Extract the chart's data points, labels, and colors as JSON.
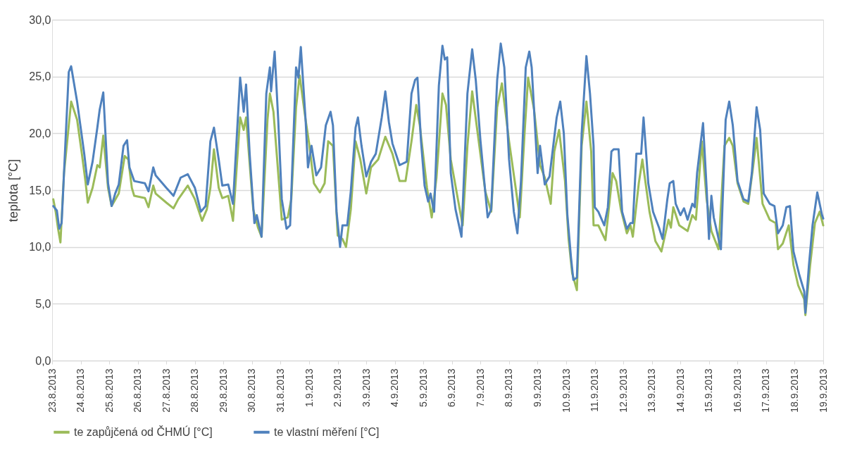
{
  "chart_data": {
    "type": "line",
    "ylabel": "teplota [°C]",
    "xlim": [
      "2013-08-23",
      "2013-09-19"
    ],
    "xticks": [
      {
        "value": "2013-08-23",
        "label": "23.8.2013"
      },
      {
        "value": "2013-08-24",
        "label": "24.8.2013"
      },
      {
        "value": "2013-08-25",
        "label": "25.8.2013"
      },
      {
        "value": "2013-08-26",
        "label": "26.8.2013"
      },
      {
        "value": "2013-08-27",
        "label": "27.8.2013"
      },
      {
        "value": "2013-08-28",
        "label": "28.8.2013"
      },
      {
        "value": "2013-08-29",
        "label": "29.8.2013"
      },
      {
        "value": "2013-08-30",
        "label": "30.8.2013"
      },
      {
        "value": "2013-08-31",
        "label": "31.8.2013"
      },
      {
        "value": "2013-09-01",
        "label": "1.9.2013"
      },
      {
        "value": "2013-09-02",
        "label": "2.9.2013"
      },
      {
        "value": "2013-09-03",
        "label": "3.9.2013"
      },
      {
        "value": "2013-09-04",
        "label": "4.9.2013"
      },
      {
        "value": "2013-09-05",
        "label": "5.9.2013"
      },
      {
        "value": "2013-09-06",
        "label": "6.9.2013"
      },
      {
        "value": "2013-09-07",
        "label": "7.9.2013"
      },
      {
        "value": "2013-09-08",
        "label": "8.9.2013"
      },
      {
        "value": "2013-09-09",
        "label": "9.9.2013"
      },
      {
        "value": "2013-09-10",
        "label": "10.9.2013"
      },
      {
        "value": "2013-09-11",
        "label": "11.9.2013"
      },
      {
        "value": "2013-09-12",
        "label": "12.9.2013"
      },
      {
        "value": "2013-09-13",
        "label": "13.9.2013"
      },
      {
        "value": "2013-09-14",
        "label": "14.9.2013"
      },
      {
        "value": "2013-09-15",
        "label": "15.9.2013"
      },
      {
        "value": "2013-09-16",
        "label": "16.9.2013"
      },
      {
        "value": "2013-09-17",
        "label": "17.9.2013"
      },
      {
        "value": "2013-09-18",
        "label": "18.9.2013"
      },
      {
        "value": "2013-09-19",
        "label": "19.9.2013"
      }
    ],
    "ylim": [
      0,
      30
    ],
    "yticks": [
      {
        "value": 0,
        "label": "0,0"
      },
      {
        "value": 5,
        "label": "5,0"
      },
      {
        "value": 10,
        "label": "10,0"
      },
      {
        "value": 15,
        "label": "15,0"
      },
      {
        "value": 20,
        "label": "20,0"
      },
      {
        "value": 25,
        "label": "25,0"
      },
      {
        "value": 30,
        "label": "30,0"
      }
    ],
    "grid": "y",
    "legend": "bottom",
    "line_style": "solid",
    "marker": "none",
    "series": [
      {
        "name": "te zapůjčená od ČHMÚ [°C]",
        "color": "#9bbb59",
        "x": [
          "2013-08-23T01:00",
          "2013-08-23T03:00",
          "2013-08-23T05:00",
          "2013-08-23T07:00",
          "2013-08-23T10:00",
          "2013-08-23T16:00",
          "2013-08-23T21:00",
          "2013-08-24T01:00",
          "2013-08-24T04:00",
          "2013-08-24T06:00",
          "2013-08-24T10:00",
          "2013-08-24T14:00",
          "2013-08-24T16:00",
          "2013-08-24T19:00",
          "2013-08-24T23:00",
          "2013-08-25T02:00",
          "2013-08-25T08:00",
          "2013-08-25T13:00",
          "2013-08-25T16:00",
          "2013-08-25T19:00",
          "2013-08-25T21:00",
          "2013-08-26T06:00",
          "2013-08-26T09:00",
          "2013-08-26T13:00",
          "2013-08-26T15:00",
          "2013-08-27T00:00",
          "2013-08-27T06:00",
          "2013-08-27T10:00",
          "2013-08-27T18:00",
          "2013-08-28T00:00",
          "2013-08-28T06:00",
          "2013-08-28T10:00",
          "2013-08-28T13:00",
          "2013-08-28T16:00",
          "2013-08-28T20:00",
          "2013-08-28T23:00",
          "2013-08-29T04:00",
          "2013-08-29T08:00",
          "2013-08-29T14:00",
          "2013-08-29T17:00",
          "2013-08-29T19:00",
          "2013-08-30T01:00",
          "2013-08-30T05:00",
          "2013-08-30T08:00",
          "2013-08-30T13:00",
          "2013-08-30T15:00",
          "2013-08-30T18:00",
          "2013-08-30T22:00",
          "2013-08-31T01:00",
          "2013-08-31T06:00",
          "2013-08-31T09:00",
          "2013-08-31T13:00",
          "2013-08-31T16:00",
          "2013-08-31T21:00",
          "2013-09-01T00:00",
          "2013-09-01T04:00",
          "2013-09-01T09:00",
          "2013-09-01T13:00",
          "2013-09-01T16:00",
          "2013-09-01T20:00",
          "2013-09-02T00:00",
          "2013-09-02T04:00",
          "2013-09-02T07:00",
          "2013-09-02T11:00",
          "2013-09-02T15:00",
          "2013-09-02T19:00",
          "2013-09-03T00:00",
          "2013-09-03T04:00",
          "2013-09-03T10:00",
          "2013-09-03T16:00",
          "2013-09-03T22:00",
          "2013-09-04T04:00",
          "2013-09-04T09:00",
          "2013-09-04T14:00",
          "2013-09-04T18:00",
          "2013-09-04T21:00",
          "2013-09-05T03:00",
          "2013-09-05T07:00",
          "2013-09-05T11:00",
          "2013-09-05T16:00",
          "2013-09-05T19:00",
          "2013-09-05T23:00",
          "2013-09-06T05:00",
          "2013-09-06T09:00",
          "2013-09-06T13:00",
          "2013-09-06T17:00",
          "2013-09-06T21:00",
          "2013-09-07T04:00",
          "2013-09-07T09:00",
          "2013-09-07T14:00",
          "2013-09-07T18:00",
          "2013-09-08T00:00",
          "2013-09-08T05:00",
          "2013-09-08T09:00",
          "2013-09-08T13:00",
          "2013-09-08T16:00",
          "2013-09-08T21:00",
          "2013-09-09T02:00",
          "2013-09-09T06:00",
          "2013-09-09T11:00",
          "2013-09-09T14:00",
          "2013-09-09T18:00",
          "2013-09-09T23:00",
          "2013-09-10T02:00",
          "2013-09-10T05:00",
          "2013-09-10T09:00",
          "2013-09-10T13:00",
          "2013-09-10T17:00",
          "2013-09-10T21:00",
          "2013-09-10T23:00",
          "2013-09-11T03:00",
          "2013-09-11T09:00",
          "2013-09-11T15:00",
          "2013-09-11T18:00",
          "2013-09-11T22:00",
          "2013-09-12T03:00",
          "2013-09-12T06:00",
          "2013-09-12T08:00",
          "2013-09-12T13:00",
          "2013-09-12T16:00",
          "2013-09-12T22:00",
          "2013-09-13T03:00",
          "2013-09-13T08:00",
          "2013-09-13T14:00",
          "2013-09-13T16:00",
          "2013-09-13T18:00",
          "2013-09-13T23:00",
          "2013-09-14T06:00",
          "2013-09-14T10:00",
          "2013-09-14T13:00",
          "2013-09-14T18:00",
          "2013-09-14T22:00",
          "2013-09-15T02:00",
          "2013-09-15T08:00",
          "2013-09-15T13:00",
          "2013-09-15T17:00",
          "2013-09-15T20:00",
          "2013-09-16T00:00",
          "2013-09-16T05:00",
          "2013-09-16T09:00",
          "2013-09-16T13:00",
          "2013-09-16T16:00",
          "2013-09-16T21:00",
          "2013-09-17T03:00",
          "2013-09-17T08:00",
          "2013-09-17T10:00",
          "2013-09-17T14:00",
          "2013-09-17T19:00",
          "2013-09-17T23:00",
          "2013-09-18T03:00",
          "2013-09-18T08:00",
          "2013-09-18T09:00",
          "2013-09-18T13:00",
          "2013-09-18T17:00",
          "2013-09-18T21:00",
          "2013-09-19T00:00"
        ],
        "values": [
          14.2,
          13.1,
          11.6,
          10.4,
          16.5,
          22.8,
          21.2,
          18.2,
          15.8,
          13.9,
          15.2,
          17.2,
          17.0,
          19.8,
          15.2,
          13.6,
          14.7,
          18.0,
          17.7,
          15.2,
          14.5,
          14.3,
          13.5,
          15.4,
          14.7,
          13.9,
          13.4,
          14.2,
          15.4,
          14.2,
          12.3,
          13.3,
          15.2,
          18.6,
          15.2,
          14.3,
          14.5,
          12.3,
          21.4,
          20.3,
          21.4,
          13.3,
          11.7,
          10.9,
          21.2,
          23.5,
          21.9,
          16.5,
          12.4,
          12.6,
          14.2,
          22.3,
          25.1,
          21.2,
          19.1,
          15.6,
          14.8,
          15.6,
          19.3,
          18.9,
          11.0,
          10.7,
          10.0,
          13.3,
          19.3,
          17.7,
          14.7,
          17.0,
          17.7,
          19.7,
          18.2,
          15.8,
          15.8,
          19.3,
          22.5,
          20.7,
          15.2,
          12.6,
          16.1,
          23.5,
          22.5,
          17.7,
          14.2,
          11.9,
          18.9,
          23.7,
          20.5,
          14.9,
          13.1,
          22.3,
          24.4,
          19.3,
          15.6,
          12.6,
          20.0,
          24.9,
          22.1,
          17.2,
          16.1,
          13.8,
          18.4,
          20.3,
          15.8,
          10.7,
          7.7,
          6.2,
          18.9,
          22.8,
          18.4,
          11.9,
          11.9,
          10.6,
          16.5,
          15.8,
          13.3,
          11.2,
          11.9,
          10.9,
          15.6,
          17.7,
          13.1,
          10.5,
          9.6,
          12.4,
          11.7,
          13.5,
          11.9,
          11.4,
          12.8,
          12.4,
          19.3,
          14.2,
          11.4,
          9.8,
          18.9,
          19.6,
          18.9,
          15.6,
          14.0,
          13.8,
          17.0,
          19.6,
          13.8,
          12.4,
          12.1,
          9.8,
          10.3,
          11.9,
          8.4,
          6.6,
          5.4,
          4.0,
          8.4,
          12.1,
          13.1,
          11.9
        ]
      },
      {
        "name": "te vlastní měření [°C]",
        "color": "#4f81bd",
        "x": [
          "2013-08-23T01:00",
          "2013-08-23T04:00",
          "2013-08-23T06:00",
          "2013-08-23T08:00",
          "2013-08-23T14:00",
          "2013-08-23T16:00",
          "2013-08-23T21:00",
          "2013-08-24T00:00",
          "2013-08-24T03:00",
          "2013-08-24T06:00",
          "2013-08-24T10:00",
          "2013-08-24T14:00",
          "2013-08-24T16:00",
          "2013-08-24T19:00",
          "2013-08-24T23:00",
          "2013-08-25T02:00",
          "2013-08-25T05:00",
          "2013-08-25T08:00",
          "2013-08-25T12:00",
          "2013-08-25T15:00",
          "2013-08-25T17:00",
          "2013-08-25T21:00",
          "2013-08-26T06:00",
          "2013-08-26T09:00",
          "2013-08-26T13:00",
          "2013-08-26T15:00",
          "2013-08-27T00:00",
          "2013-08-27T06:00",
          "2013-08-27T12:00",
          "2013-08-27T18:00",
          "2013-08-28T00:00",
          "2013-08-28T05:00",
          "2013-08-28T09:00",
          "2013-08-28T13:00",
          "2013-08-28T16:00",
          "2013-08-28T20:00",
          "2013-08-28T23:00",
          "2013-08-29T04:00",
          "2013-08-29T08:00",
          "2013-08-29T14:00",
          "2013-08-29T17:00",
          "2013-08-29T19:00",
          "2013-08-29T22:00",
          "2013-08-30T02:00",
          "2013-08-30T04:00",
          "2013-08-30T08:00",
          "2013-08-30T12:00",
          "2013-08-30T15:00",
          "2013-08-30T16:00",
          "2013-08-30T19:00",
          "2013-08-30T22:00",
          "2013-08-31T01:00",
          "2013-08-31T05:00",
          "2013-08-31T08:00",
          "2013-08-31T13:00",
          "2013-08-31T15:00",
          "2013-08-31T17:00",
          "2013-08-31T21:00",
          "2013-08-31T23:00",
          "2013-09-01T02:00",
          "2013-09-01T06:00",
          "2013-09-01T10:00",
          "2013-09-01T14:00",
          "2013-09-01T18:00",
          "2013-09-01T20:00",
          "2013-09-01T23:00",
          "2013-09-02T02:00",
          "2013-09-02T04:00",
          "2013-09-02T08:00",
          "2013-09-02T11:00",
          "2013-09-02T15:00",
          "2013-09-02T17:00",
          "2013-09-02T20:00",
          "2013-09-03T00:00",
          "2013-09-03T04:00",
          "2013-09-03T08:00",
          "2013-09-03T13:00",
          "2013-09-03T16:00",
          "2013-09-03T19:00",
          "2013-09-03T22:00",
          "2013-09-04T04:00",
          "2013-09-04T10:00",
          "2013-09-04T14:00",
          "2013-09-04T17:00",
          "2013-09-04T19:00",
          "2013-09-04T22:00",
          "2013-09-05T01:00",
          "2013-09-05T04:00",
          "2013-09-05T06:00",
          "2013-09-05T09:00",
          "2013-09-05T13:00",
          "2013-09-05T16:00",
          "2013-09-05T18:00",
          "2013-09-05T20:00",
          "2013-09-05T23:00",
          "2013-09-06T03:00",
          "2013-09-06T08:00",
          "2013-09-06T13:00",
          "2013-09-06T17:00",
          "2013-09-06T20:00",
          "2013-09-07T00:00",
          "2013-09-07T06:00",
          "2013-09-07T09:00",
          "2013-09-07T14:00",
          "2013-09-07T17:00",
          "2013-09-07T20:00",
          "2013-09-08T00:00",
          "2013-09-08T04:00",
          "2013-09-08T07:00",
          "2013-09-08T10:00",
          "2013-09-08T14:00",
          "2013-09-08T17:00",
          "2013-09-08T19:00",
          "2013-09-09T00:00",
          "2013-09-09T02:00",
          "2013-09-09T06:00",
          "2013-09-09T10:00",
          "2013-09-09T16:00",
          "2013-09-09T19:00",
          "2013-09-09T22:00",
          "2013-09-10T01:00",
          "2013-09-10T04:00",
          "2013-09-10T06:00",
          "2013-09-10T09:00",
          "2013-09-10T13:00",
          "2013-09-10T17:00",
          "2013-09-10T20:00",
          "2013-09-10T23:00",
          "2013-09-11T00:00",
          "2013-09-11T03:00",
          "2013-09-11T08:00",
          "2013-09-11T11:00",
          "2013-09-11T14:00",
          "2013-09-11T16:00",
          "2013-09-11T20:00",
          "2013-09-11T23:00",
          "2013-09-12T03:00",
          "2013-09-12T06:00",
          "2013-09-12T08:00",
          "2013-09-12T11:00",
          "2013-09-12T15:00",
          "2013-09-12T17:00",
          "2013-09-12T21:00",
          "2013-09-13T01:00",
          "2013-09-13T06:00",
          "2013-09-13T09:00",
          "2013-09-13T13:00",
          "2013-09-13T15:00",
          "2013-09-13T18:00",
          "2013-09-13T20:00",
          "2013-09-14T00:00",
          "2013-09-14T03:00",
          "2013-09-14T06:00",
          "2013-09-14T10:00",
          "2013-09-14T12:00",
          "2013-09-14T14:00",
          "2013-09-14T19:00",
          "2013-09-14T22:00",
          "2013-09-15T00:00",
          "2013-09-15T02:00",
          "2013-09-15T04:00",
          "2013-09-15T10:00",
          "2013-09-15T14:00",
          "2013-09-15T17:00",
          "2013-09-15T20:00",
          "2013-09-16T00:00",
          "2013-09-16T05:00",
          "2013-09-16T09:00",
          "2013-09-16T12:00",
          "2013-09-16T16:00",
          "2013-09-16T19:00",
          "2013-09-16T22:00",
          "2013-09-17T03:00",
          "2013-09-17T07:00",
          "2013-09-17T10:00",
          "2013-09-17T14:00",
          "2013-09-17T17:00",
          "2013-09-17T20:00",
          "2013-09-17T23:00",
          "2013-09-18T04:00",
          "2013-09-18T08:00",
          "2013-09-18T09:00",
          "2013-09-18T12:00",
          "2013-09-18T15:00",
          "2013-09-18T19:00",
          "2013-09-18T23:00",
          "2013-09-19T00:00"
        ],
        "values": [
          13.6,
          13.2,
          11.6,
          12.1,
          25.4,
          25.9,
          22.8,
          20.5,
          18.2,
          15.5,
          17.5,
          20.5,
          22.1,
          23.6,
          15.6,
          13.6,
          14.7,
          15.5,
          18.9,
          19.4,
          17.0,
          15.8,
          15.6,
          14.9,
          17.0,
          16.3,
          15.2,
          14.5,
          16.1,
          16.4,
          15.2,
          13.1,
          13.6,
          19.3,
          20.5,
          17.7,
          15.4,
          15.5,
          13.8,
          24.9,
          21.9,
          24.3,
          18.2,
          12.1,
          12.8,
          10.9,
          23.5,
          25.8,
          23.7,
          27.2,
          21.2,
          14.2,
          11.6,
          11.9,
          25.8,
          24.9,
          27.6,
          21.2,
          17.0,
          18.9,
          16.3,
          17.0,
          20.7,
          21.9,
          20.7,
          13.1,
          10.0,
          11.9,
          11.9,
          14.9,
          20.5,
          21.4,
          18.9,
          16.2,
          17.5,
          18.2,
          21.4,
          23.7,
          21.0,
          19.1,
          17.2,
          17.5,
          23.5,
          24.7,
          24.9,
          19.3,
          15.4,
          14.0,
          14.7,
          13.1,
          24.2,
          27.7,
          26.5,
          26.7,
          16.5,
          13.3,
          10.9,
          23.5,
          27.4,
          24.7,
          19.3,
          12.6,
          13.3,
          24.7,
          27.9,
          25.8,
          17.7,
          13.1,
          11.2,
          15.8,
          25.8,
          27.2,
          25.8,
          16.5,
          18.9,
          15.5,
          16.2,
          21.4,
          22.8,
          20.0,
          12.8,
          9.1,
          7.1,
          7.3,
          20.0,
          26.8,
          23.5,
          18.9,
          13.5,
          13.1,
          11.9,
          13.5,
          18.4,
          18.6,
          18.6,
          13.1,
          11.6,
          12.1,
          12.1,
          18.2,
          18.2,
          21.4,
          15.6,
          13.1,
          11.7,
          10.7,
          14.2,
          15.6,
          15.8,
          13.8,
          12.8,
          13.4,
          12.4,
          13.8,
          13.5,
          16.5,
          20.9,
          15.2,
          10.7,
          14.5,
          12.6,
          9.8,
          21.2,
          22.8,
          20.7,
          15.8,
          14.2,
          14.0,
          16.5,
          22.3,
          20.3,
          14.7,
          13.8,
          13.6,
          11.2,
          11.9,
          13.5,
          13.6,
          9.6,
          7.5,
          6.1,
          4.2,
          8.4,
          11.9,
          14.8,
          12.8,
          12.5
        ]
      }
    ]
  }
}
